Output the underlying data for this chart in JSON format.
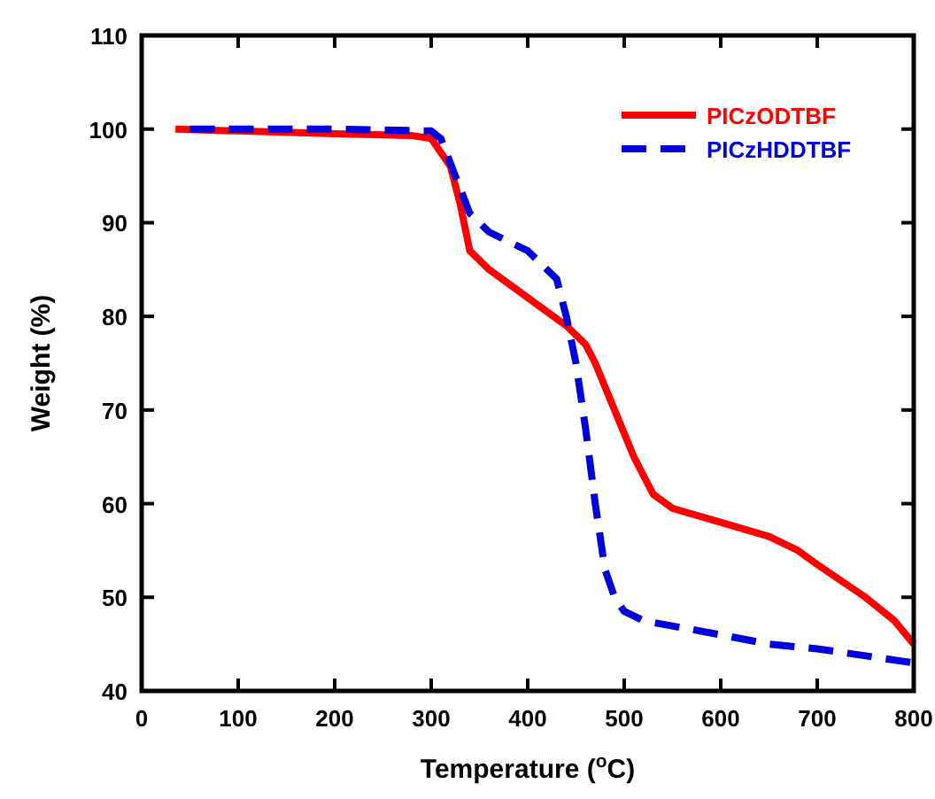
{
  "chart_data": {
    "type": "line",
    "xlabel": "Temperature ($^{o}$C)",
    "ylabel": "Weight (%)",
    "xlim": [
      0,
      800
    ],
    "ylim": [
      40,
      110
    ],
    "xticks": [
      0,
      100,
      200,
      300,
      400,
      500,
      600,
      700,
      800
    ],
    "yticks": [
      40,
      50,
      60,
      70,
      80,
      90,
      100,
      110
    ],
    "grid": false,
    "legend": "top right",
    "series": [
      {
        "name": "PICzODTBF",
        "color": "#ff0000",
        "line_style": "solid",
        "x": [
          35,
          100,
          200,
          280,
          300,
          320,
          330,
          340,
          360,
          400,
          440,
          460,
          470,
          490,
          510,
          530,
          550,
          600,
          650,
          680,
          700,
          750,
          780,
          800
        ],
        "values": [
          100,
          99.8,
          99.5,
          99.3,
          99,
          96,
          92,
          87,
          85,
          82,
          79,
          77,
          75,
          70,
          65,
          61,
          59.5,
          58,
          56.5,
          55,
          53.5,
          50,
          47.5,
          45
        ]
      },
      {
        "name": "PICzHDDTBF",
        "color": "#0000dd",
        "line_style": "dashed",
        "x": [
          50,
          100,
          200,
          300,
          310,
          325,
          340,
          360,
          400,
          430,
          440,
          450,
          460,
          470,
          480,
          490,
          500,
          520,
          600,
          650,
          700,
          800
        ],
        "values": [
          100,
          100,
          100,
          99.8,
          99,
          95,
          91,
          89,
          87,
          84,
          80,
          75,
          68,
          60,
          53,
          50,
          48.5,
          47.5,
          46,
          45,
          44.5,
          43
        ]
      }
    ]
  }
}
